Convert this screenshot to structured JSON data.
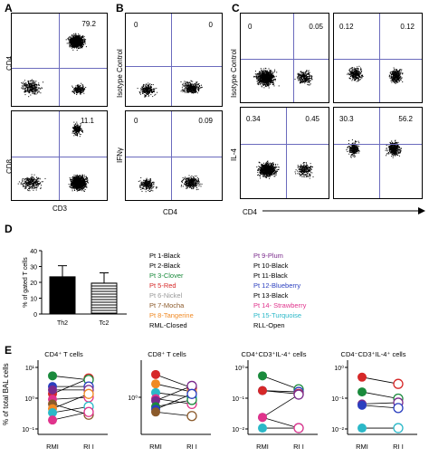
{
  "panels": {
    "A": {
      "label": "A",
      "top": {
        "ylabel": "CD4",
        "value": "79.2"
      },
      "bottom": {
        "ylabel": "CD8",
        "value": "11.1"
      },
      "xlabel": "CD3"
    },
    "B": {
      "label": "B",
      "top": {
        "ylabel": "Isotype Control",
        "ul": "0",
        "ur": "0"
      },
      "bottom": {
        "ylabel": "IFNγ",
        "ul": "0",
        "ur": "0.09"
      },
      "xlabel": "CD4"
    },
    "C": {
      "label": "C",
      "top_left": {
        "ul": "0",
        "ur": "0.05"
      },
      "top_right": {
        "ul": "0.12",
        "ur": "0.12"
      },
      "bottom_left": {
        "ul": "0.34",
        "ur": "0.45"
      },
      "bottom_right": {
        "ul": "30.3",
        "ur": "56.2"
      },
      "ylabel_top": "Isotype Control",
      "ylabel_bottom": "IL-4",
      "xlabel": "CD4"
    },
    "D": {
      "label": "D"
    },
    "E": {
      "label": "E"
    }
  },
  "legend": {
    "left": [
      {
        "text": "Pt 1-Black",
        "color": "#000000"
      },
      {
        "text": "Pt 2-Black",
        "color": "#000000"
      },
      {
        "text": "Pt 3-Clover",
        "color": "#1a8a3c"
      },
      {
        "text": "Pt 5-Red",
        "color": "#d62828"
      },
      {
        "text": "Pt 6-Nickel",
        "color": "#9a9a9a"
      },
      {
        "text": "Pt 7-Mocha",
        "color": "#8b5a2b"
      },
      {
        "text": "Pt 8-Tangerine",
        "color": "#f08a24"
      },
      {
        "text": "RML-Closed",
        "color": "#000000"
      }
    ],
    "right": [
      {
        "text": "Pt 9-Plum",
        "color": "#7a2a8c"
      },
      {
        "text": "Pt 10-Black",
        "color": "#000000"
      },
      {
        "text": "Pt 11-Black",
        "color": "#000000"
      },
      {
        "text": "Pt 12-Blueberry",
        "color": "#2b3fbf"
      },
      {
        "text": "Pt 13-Black",
        "color": "#000000"
      },
      {
        "text": "Pt 14- Strawberry",
        "color": "#e0338c"
      },
      {
        "text": "Pt 15-Turquoise",
        "color": "#2bb8c8"
      },
      {
        "text": "RLL-Open",
        "color": "#000000"
      }
    ]
  },
  "chart_data": [
    {
      "type": "bar",
      "categories": [
        "Th2",
        "Tc2"
      ],
      "values": [
        23.5,
        19.5
      ],
      "errors": [
        7,
        6.5
      ],
      "ylabel": "% of gated T cells",
      "ylim": [
        0,
        40
      ],
      "yticks": [
        "0",
        "10",
        "20",
        "30",
        "40"
      ]
    },
    {
      "type": "scatter",
      "title": "CD4⁺ T cells",
      "ylabel": "% of total BAL cells",
      "xticks": [
        "RMI",
        "RI I"
      ],
      "yticks": [
        "10⁻¹",
        "10⁰",
        "10¹"
      ],
      "pairs": [
        {
          "color": "#d62828",
          "a": 0.55,
          "b": 0.78
        },
        {
          "color": "#1a8a3c",
          "a": 0.82,
          "b": 0.76
        },
        {
          "color": "#2b3fbf",
          "a": 0.66,
          "b": 0.66
        },
        {
          "color": "#7a2a8c",
          "a": 0.61,
          "b": 0.61
        },
        {
          "color": "#e0338c",
          "a": 0.47,
          "b": 0.5
        },
        {
          "color": "#8b5a2b",
          "a": 0.4,
          "b": 0.24
        },
        {
          "color": "#f08a24",
          "a": 0.33,
          "b": 0.55
        },
        {
          "color": "#2bb8c8",
          "a": 0.27,
          "b": 0.36
        },
        {
          "color": "#e0338c",
          "a": 0.16,
          "b": 0.28
        }
      ]
    },
    {
      "type": "scatter",
      "title": "CD8⁺ T cells",
      "xticks": [
        "RMI",
        "RI I"
      ],
      "yticks": [
        "10⁰"
      ],
      "pairs": [
        {
          "color": "#d62828",
          "a": 0.84,
          "b": 0.64
        },
        {
          "color": "#f08a24",
          "a": 0.7,
          "b": 0.58
        },
        {
          "color": "#2bb8c8",
          "a": 0.57,
          "b": 0.5
        },
        {
          "color": "#e0338c",
          "a": 0.48,
          "b": 0.4
        },
        {
          "color": "#7a2a8c",
          "a": 0.45,
          "b": 0.67
        },
        {
          "color": "#1a8a3c",
          "a": 0.36,
          "b": 0.46
        },
        {
          "color": "#2b3fbf",
          "a": 0.32,
          "b": 0.55
        },
        {
          "color": "#8b5a2b",
          "a": 0.28,
          "b": 0.22
        }
      ]
    },
    {
      "type": "scatter",
      "title": "CD4⁺CD3⁺IL-4⁺ cells",
      "xticks": [
        "RMI",
        "RI I"
      ],
      "yticks": [
        "10⁻²",
        "10⁻¹",
        "10⁰"
      ],
      "pairs": [
        {
          "color": "#1a8a3c",
          "a": 0.82,
          "b": 0.62
        },
        {
          "color": "#2b3fbf",
          "a": 0.6,
          "b": 0.58
        },
        {
          "color": "#d62828",
          "a": 0.6,
          "b": 0.55
        },
        {
          "color": "#7a2a8c",
          "a": 0.2,
          "b": 0.54
        },
        {
          "color": "#2bb8c8",
          "a": 0.04,
          "b": 0.04
        },
        {
          "color": "#e0338c",
          "a": 0.2,
          "b": 0.04
        }
      ]
    },
    {
      "type": "scatter",
      "title": "CD4⁻CD3⁺IL-4⁺ cells",
      "xticks": [
        "RMI",
        "RI I"
      ],
      "yticks": [
        "10⁻²",
        "10⁻¹",
        "10⁰"
      ],
      "pairs": [
        {
          "color": "#1a8a3c",
          "a": 0.58,
          "b": 0.48
        },
        {
          "color": "#d62828",
          "a": 0.8,
          "b": 0.7
        },
        {
          "color": "#7a2a8c",
          "a": 0.4,
          "b": 0.42
        },
        {
          "color": "#2b3fbf",
          "a": 0.38,
          "b": 0.34
        },
        {
          "color": "#2bb8c8",
          "a": 0.04,
          "b": 0.04
        }
      ]
    }
  ]
}
